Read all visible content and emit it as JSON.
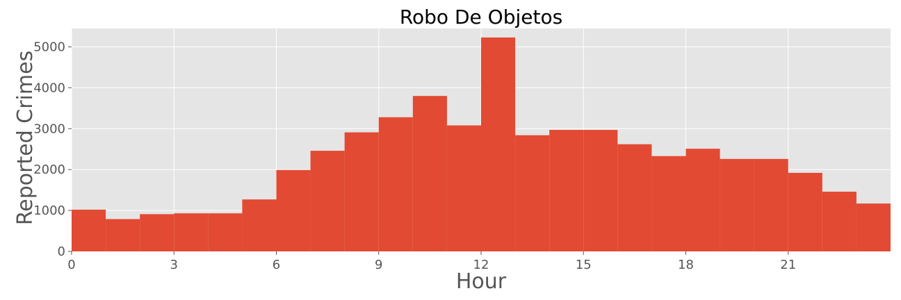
{
  "chart_data": {
    "type": "bar",
    "title": "Robo De Objetos",
    "xlabel": "Hour",
    "ylabel": "Reported Crimes",
    "x": [
      0,
      1,
      2,
      3,
      4,
      5,
      6,
      7,
      8,
      9,
      10,
      11,
      12,
      13,
      14,
      15,
      16,
      17,
      18,
      19,
      20,
      21,
      22,
      23
    ],
    "values": [
      1020,
      790,
      910,
      930,
      930,
      1270,
      1990,
      2460,
      2910,
      3280,
      3800,
      3080,
      5230,
      2840,
      2970,
      2970,
      2620,
      2330,
      2510,
      2260,
      2260,
      1920,
      1460,
      1170
    ],
    "xlim": [
      0,
      24
    ],
    "ylim": [
      0,
      5450
    ],
    "xticks": [
      "0",
      "3",
      "6",
      "9",
      "12",
      "15",
      "18",
      "21"
    ],
    "yticks": [
      "0",
      "1000",
      "2000",
      "3000",
      "4000",
      "5000"
    ],
    "grid": true,
    "colors": {
      "bar": "#E24A33",
      "plot_background": "#E5E5E5",
      "grid": "#FFFFFF",
      "text": "#555555",
      "title": "#000000"
    }
  }
}
